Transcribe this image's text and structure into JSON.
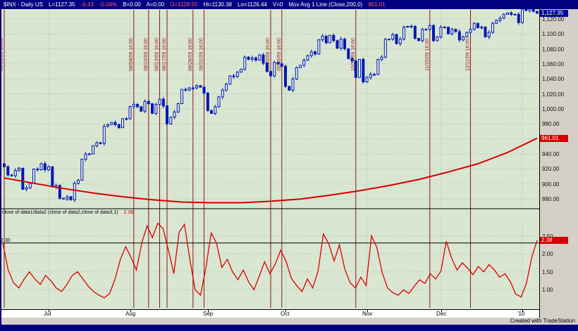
{
  "window": {
    "title_segments": [
      {
        "text": "$INX - Daily US",
        "color": "#ffffff"
      },
      {
        "text": "L=1127.35",
        "color": "#ffffff"
      },
      {
        "text": "-0.43",
        "color": "#ff5a5a"
      },
      {
        "text": "-0.04%",
        "color": "#ff5a5a"
      },
      {
        "text": "B=0.00",
        "color": "#ffffff"
      },
      {
        "text": "A=0.00",
        "color": "#ffffff"
      },
      {
        "text": "O=1128.55",
        "color": "#ff5a5a"
      },
      {
        "text": "Hi=1130.38",
        "color": "#ffffff"
      },
      {
        "text": "Lo=1126.44",
        "color": "#ffffff"
      },
      {
        "text": "V=0",
        "color": "#ffffff"
      },
      {
        "text": "Mov Avg 1 Line (Close,200,0)",
        "color": "#ffffff"
      },
      {
        "text": "961.01",
        "color": "#ff5a5a"
      }
    ]
  },
  "indicator_header": {
    "label": "close of data1/data2 (close of data2,close of data3,1)",
    "value": "2.38"
  },
  "badges": {
    "last_price": "1,127.35",
    "ma_value": "961.01",
    "indicator_value": "2.38"
  },
  "footer": {
    "created_label": "Created with TradeStation"
  },
  "axis": {
    "price_ticks": [
      {
        "v": 1120,
        "label": "1,120.00"
      },
      {
        "v": 1100,
        "label": "1,100.00"
      },
      {
        "v": 1080,
        "label": "1,080.00"
      },
      {
        "v": 1060,
        "label": "1,060.00"
      },
      {
        "v": 1040,
        "label": "1,040.00"
      },
      {
        "v": 1020,
        "label": "1,020.00"
      },
      {
        "v": 1000,
        "label": "1,000.00"
      },
      {
        "v": 980,
        "label": "980.00"
      },
      {
        "v": 960,
        "label": "960.00"
      },
      {
        "v": 940,
        "label": "940.00"
      },
      {
        "v": 920,
        "label": "920.00"
      },
      {
        "v": 900,
        "label": "900.00"
      },
      {
        "v": 880,
        "label": "880.00"
      }
    ],
    "ratio_ticks": [
      {
        "v": 2.5,
        "label": "2.50"
      },
      {
        "v": 2.0,
        "label": "2.00"
      },
      {
        "v": 1.5,
        "label": "1.50"
      },
      {
        "v": 1.0,
        "label": "1.00"
      }
    ]
  },
  "colors": {
    "titlebar_bg": "#000080",
    "panel_bg": "#d9e6d2",
    "grid": "#aec2a8",
    "candle": "#0018b5",
    "candle_up_fill": "#e9f1e3",
    "ma": "#d40000",
    "ratio": "#dd0000",
    "event": "#8b1515",
    "event_text": "#9b1b1b",
    "axis_bg": "#d4d0c8",
    "badge_last_bg": "#00089b",
    "badge_value_bg": "#d40000"
  },
  "chart_data": [
    {
      "type": "candlestick",
      "symbol": "$INX",
      "interval": "Daily",
      "title": "$INX - Daily US",
      "ylim": [
        868,
        1132
      ],
      "last": 1127.35,
      "closes": [
        923,
        912,
        911,
        918,
        921,
        893,
        895,
        901,
        920,
        919,
        927,
        919,
        923,
        896,
        898,
        881,
        880,
        883,
        879,
        901,
        905,
        933,
        940,
        940,
        951,
        955,
        954,
        977,
        979,
        982,
        979,
        975,
        987,
        987,
        1003,
        1006,
        1003,
        997,
        1010,
        1007,
        994,
        1006,
        1013,
        1004,
        980,
        989,
        996,
        1007,
        1026,
        1025,
        1028,
        1028,
        1031,
        1029,
        1021,
        998,
        994,
        1003,
        1016,
        1025,
        1033,
        1044,
        1043,
        1049,
        1053,
        1069,
        1066,
        1068,
        1065,
        1072,
        1061,
        1050,
        1044,
        1062,
        1060,
        1057,
        1030,
        1025,
        1040,
        1055,
        1058,
        1065,
        1071,
        1076,
        1073,
        1092,
        1097,
        1088,
        1098,
        1091,
        1081,
        1093,
        1080,
        1067,
        1064,
        1042,
        1066,
        1036,
        1042,
        1046,
        1046,
        1066,
        1069,
        1093,
        1093,
        1099,
        1087,
        1093,
        1109,
        1110,
        1110,
        1094,
        1091,
        1106,
        1106,
        1111,
        1091,
        1096,
        1109,
        1109,
        1100,
        1106,
        1103,
        1092,
        1096,
        1102,
        1106,
        1114,
        1108,
        1109,
        1096,
        1102,
        1114,
        1118,
        1121,
        1126,
        1128,
        1126,
        1126,
        1115,
        1133,
        1131,
        1137,
        1130,
        1127.35
      ],
      "ma": {
        "name": "Mov Avg 1 Line (Close,200,0)",
        "value": 961.01,
        "points": [
          [
            0,
            908
          ],
          [
            8,
            901
          ],
          [
            16,
            894
          ],
          [
            24,
            888
          ],
          [
            32,
            883
          ],
          [
            40,
            879
          ],
          [
            48,
            876
          ],
          [
            56,
            875
          ],
          [
            64,
            875
          ],
          [
            72,
            877
          ],
          [
            80,
            880
          ],
          [
            88,
            885
          ],
          [
            96,
            891
          ],
          [
            104,
            898
          ],
          [
            112,
            906
          ],
          [
            120,
            916
          ],
          [
            128,
            927
          ],
          [
            136,
            942
          ],
          [
            144,
            961
          ]
        ]
      },
      "months": [
        {
          "label": "Jul",
          "index": 12
        },
        {
          "label": "Aug",
          "index": 34
        },
        {
          "label": "Sep",
          "index": 55
        },
        {
          "label": "Oct",
          "index": 76
        },
        {
          "label": "Nov",
          "index": 98
        },
        {
          "label": "Dec",
          "index": 118
        },
        {
          "label": "'10",
          "index": 140
        }
      ],
      "event_lines": [
        {
          "index": 0,
          "label": "06/15/09 16:00"
        },
        {
          "index": 35,
          "label": "08/04/09 16:00"
        },
        {
          "index": 39,
          "label": "08/10/09 16:00"
        },
        {
          "index": 42,
          "label": "08/13/09 16:00"
        },
        {
          "index": 44,
          "label": "08/17/09 16:00"
        },
        {
          "index": 51,
          "label": "08/26/09 16:00"
        },
        {
          "index": 54,
          "label": "08/31/09 16:00"
        },
        {
          "index": 72,
          "label": "09/25/09 16:00"
        },
        {
          "index": 75,
          "label": "09/30/09 16:00"
        },
        {
          "index": 95,
          "label": "10/28/09 16:00"
        },
        {
          "index": 115,
          "label": "11/25/09 16:00"
        },
        {
          "index": 126,
          "label": "12/11/09 16:00"
        }
      ]
    },
    {
      "type": "line",
      "name": "close of data1/data2",
      "ylim": [
        0.5,
        3.0
      ],
      "last": 2.38,
      "threshold": 2.3,
      "threshold_label": "2.30",
      "values": [
        2.3,
        1.55,
        1.2,
        1.05,
        1.3,
        1.5,
        1.3,
        1.15,
        1.4,
        1.25,
        1.05,
        0.95,
        1.15,
        1.4,
        1.5,
        1.3,
        1.1,
        0.95,
        0.85,
        0.78,
        0.9,
        1.3,
        1.85,
        2.2,
        1.9,
        1.55,
        2.3,
        2.78,
        2.45,
        2.85,
        2.7,
        2.1,
        1.45,
        2.6,
        2.82,
        1.85,
        1.0,
        0.85,
        1.6,
        2.58,
        2.3,
        1.62,
        1.85,
        1.5,
        1.28,
        1.55,
        1.22,
        1.0,
        1.38,
        1.78,
        1.45,
        1.72,
        2.1,
        1.8,
        1.32,
        1.12,
        0.95,
        1.3,
        1.05,
        1.52,
        2.55,
        2.28,
        1.8,
        2.25,
        1.58,
        1.2,
        1.05,
        1.35,
        1.12,
        2.5,
        2.18,
        1.48,
        1.05,
        0.92,
        0.85,
        1.0,
        0.9,
        1.1,
        1.28,
        1.18,
        1.45,
        1.3,
        1.52,
        2.35,
        1.88,
        1.55,
        1.75,
        1.6,
        1.42,
        1.65,
        1.5,
        1.7,
        1.55,
        1.35,
        1.45,
        1.22,
        0.88,
        0.8,
        1.18,
        1.9,
        2.38
      ]
    }
  ]
}
